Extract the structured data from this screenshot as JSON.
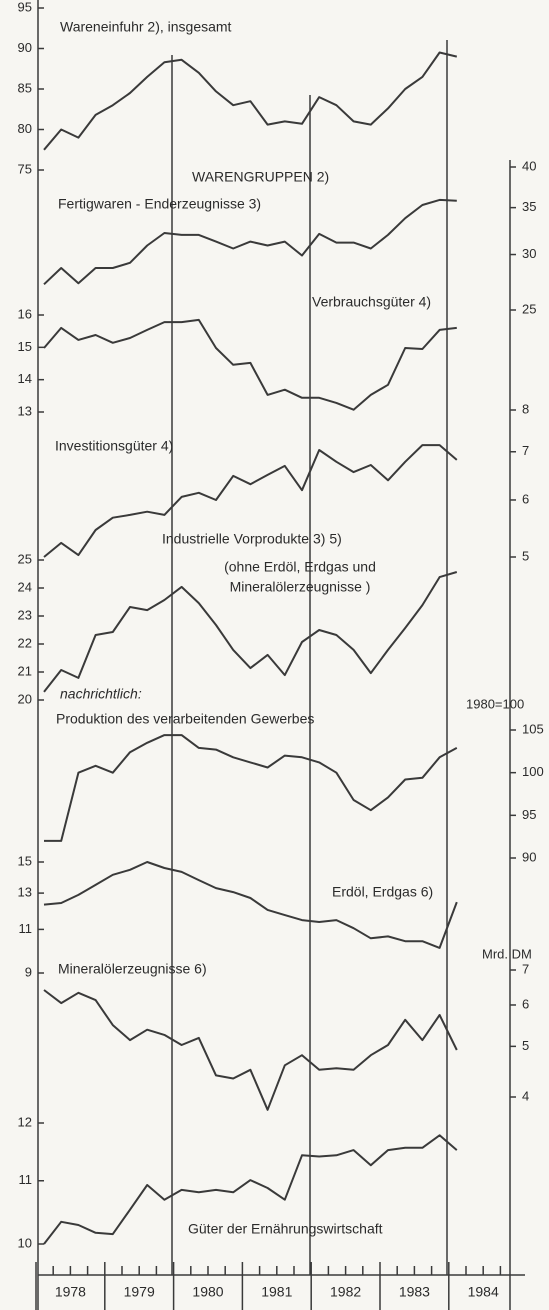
{
  "chart_data": {
    "type": "line",
    "color": "#3a3a3a",
    "heading": "WARENGRUPPEN 2)",
    "note": "nachrichtlich:",
    "years": [
      "1978",
      "1979",
      "1980",
      "1981",
      "1982",
      "1983",
      "1984"
    ],
    "panels": [
      {
        "title": "Wareneinfuhr 2), insgesamt",
        "ylim": [
          75,
          95
        ],
        "yticks": [
          75,
          80,
          85,
          90,
          95
        ],
        "values": [
          77.5,
          80,
          79,
          81.8,
          83,
          84.5,
          86.5,
          88.3,
          88.6,
          87,
          84.7,
          83,
          83.5,
          80.6,
          81,
          80.7,
          84,
          83,
          81,
          80.6,
          82.6,
          85,
          86.5,
          89.5,
          89
        ]
      },
      {
        "title": "Fertigwaren - Enderzeugnisse 3)",
        "log": true,
        "ylim": [
          25,
          40
        ],
        "yticks": [
          25,
          30,
          35,
          40
        ],
        "values": [
          27.2,
          28.7,
          27.3,
          28.7,
          28.7,
          29.2,
          30.9,
          32.2,
          32.0,
          32.0,
          31.3,
          30.6,
          31.3,
          30.9,
          31.3,
          29.9,
          32.1,
          31.2,
          31.2,
          30.6,
          32.0,
          33.8,
          35.3,
          35.9,
          35.8
        ]
      },
      {
        "title": "Verbrauchsgüter 4)",
        "ylim": [
          13,
          16
        ],
        "yticks": [
          13,
          14,
          15,
          16
        ],
        "values": [
          14.98,
          15.6,
          15.23,
          15.38,
          15.14,
          15.29,
          15.54,
          15.78,
          15.78,
          15.85,
          14.98,
          14.46,
          14.52,
          13.53,
          13.69,
          13.44,
          13.44,
          13.28,
          13.07,
          13.53,
          13.84,
          14.98,
          14.95,
          15.54,
          15.6
        ]
      },
      {
        "title": "Investitionsgüter 4)",
        "log": true,
        "ylim": [
          5,
          8
        ],
        "yticks": [
          5,
          6,
          7,
          8
        ],
        "values": [
          5.0,
          5.23,
          5.03,
          5.45,
          5.67,
          5.72,
          5.78,
          5.72,
          6.06,
          6.14,
          6.0,
          6.48,
          6.31,
          6.5,
          6.69,
          6.19,
          7.04,
          6.78,
          6.56,
          6.71,
          6.39,
          6.78,
          7.15,
          7.15,
          6.82
        ]
      },
      {
        "title": "Industrielle Vorprodukte 3) 5)",
        "subtitle": [
          "(ohne Erdöl, Erdgas und",
          "Mineralölerzeugnisse )"
        ],
        "ylim": [
          20,
          25
        ],
        "yticks": [
          20,
          21,
          22,
          23,
          24,
          25
        ],
        "values": [
          20.29,
          21.07,
          20.79,
          22.32,
          22.43,
          23.32,
          23.21,
          23.57,
          24.04,
          23.46,
          22.68,
          21.79,
          21.14,
          21.61,
          20.89,
          22.07,
          22.5,
          22.32,
          21.79,
          20.96,
          21.79,
          22.57,
          23.39,
          24.39,
          24.57
        ]
      },
      {
        "title": "Produktion des verarbeitenden Gewerbes",
        "unit": "1980=100",
        "ylim": [
          90,
          105
        ],
        "yticks": [
          90,
          95,
          100,
          105
        ],
        "values": [
          92.0,
          92.0,
          100,
          100.8,
          100,
          102.4,
          103.5,
          104.4,
          104.4,
          102.9,
          102.7,
          101.8,
          101.2,
          100.6,
          102.0,
          101.8,
          101.2,
          100,
          96.8,
          95.6,
          97.1,
          99.2,
          99.4,
          101.8,
          102.9
        ]
      },
      {
        "title": "Erdöl, Erdgas 6)",
        "log": true,
        "ylim": [
          9,
          15
        ],
        "yticks": [
          9,
          11,
          13,
          15
        ],
        "values": [
          12.33,
          12.42,
          12.89,
          13.5,
          14.14,
          14.47,
          15.0,
          14.59,
          14.33,
          13.8,
          13.3,
          13.06,
          12.71,
          12.03,
          11.75,
          11.48,
          11.38,
          11.48,
          11.06,
          10.56,
          10.65,
          10.42,
          10.42,
          10.1,
          12.47
        ]
      },
      {
        "title": "Mineralölerzeugnisse 6)",
        "unit": "Mrd. DM",
        "log": true,
        "ylim": [
          4,
          7
        ],
        "yticks": [
          4,
          5,
          6,
          7
        ],
        "values": [
          6.41,
          6.05,
          6.33,
          6.13,
          5.49,
          5.14,
          5.38,
          5.26,
          5.03,
          5.19,
          4.4,
          4.34,
          4.51,
          3.78,
          4.6,
          4.81,
          4.51,
          4.54,
          4.51,
          4.81,
          5.03,
          5.62,
          5.14,
          5.74,
          4.92
        ]
      },
      {
        "title": "Güter der Ernährungswirtschaft",
        "log": true,
        "ylim": [
          10,
          12
        ],
        "yticks": [
          10,
          11,
          12
        ],
        "values": [
          10,
          10.34,
          10.29,
          10.17,
          10.15,
          10.53,
          10.93,
          10.69,
          10.85,
          10.81,
          10.85,
          10.81,
          11.01,
          10.88,
          10.69,
          11.43,
          11.41,
          11.43,
          11.52,
          11.26,
          11.52,
          11.56,
          11.56,
          11.78,
          11.52
        ]
      }
    ]
  }
}
